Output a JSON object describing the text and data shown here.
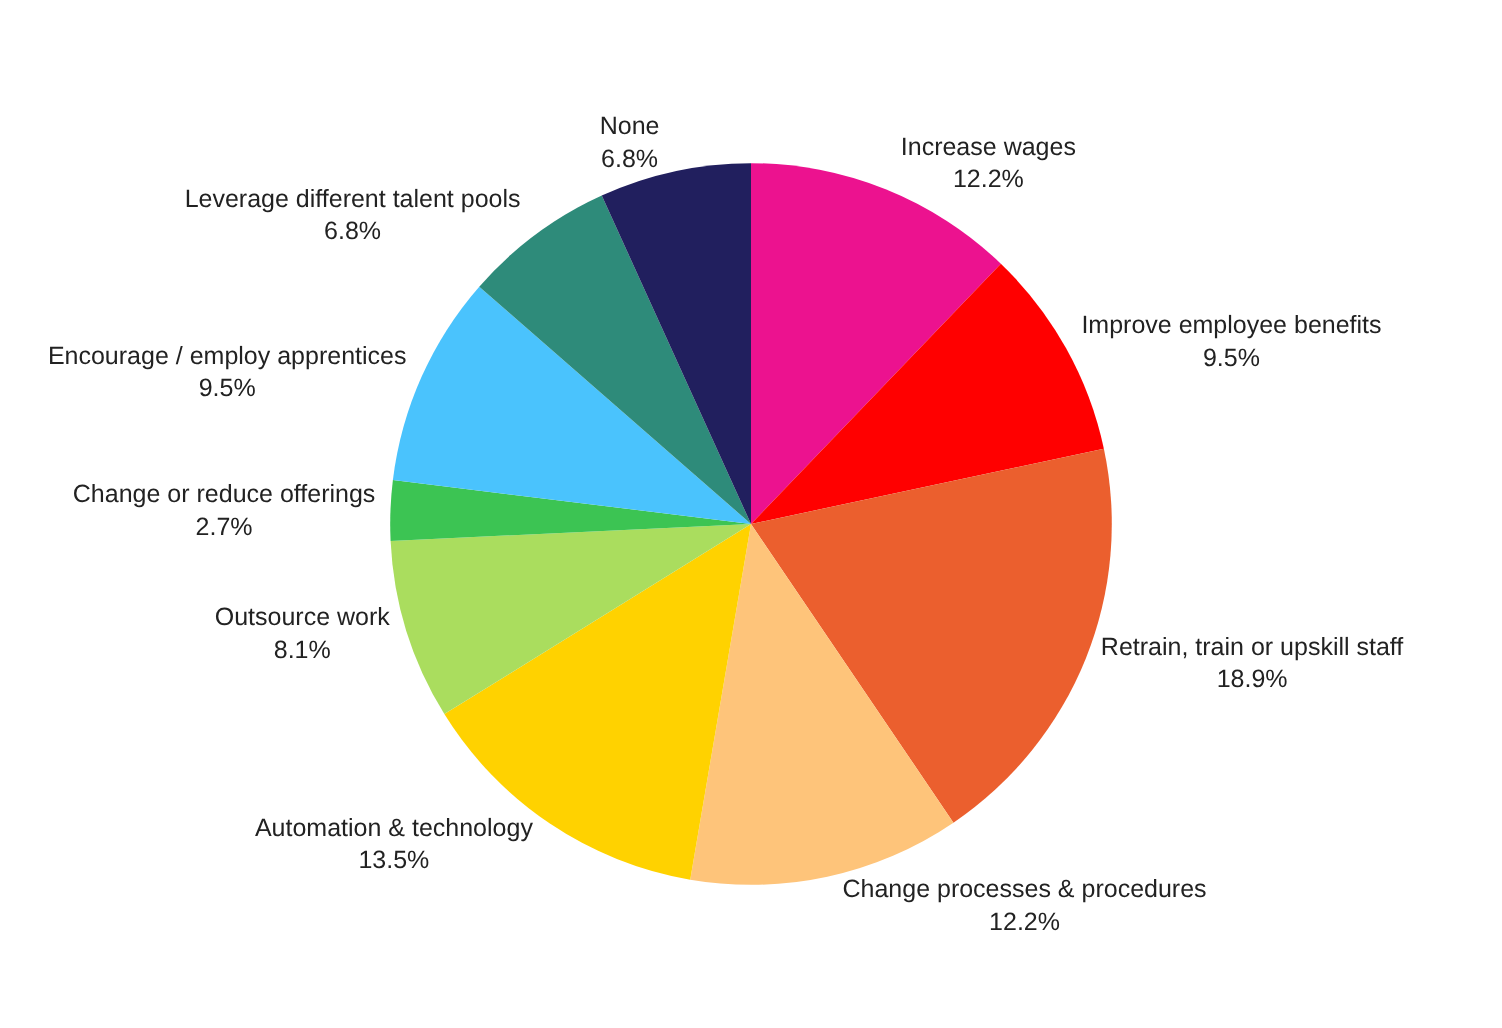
{
  "chart_data": {
    "type": "pie",
    "categories": [
      "Increase wages",
      "Improve employee benefits",
      "Retrain, train or upskill staff",
      "Change processes & procedures",
      "Automation & technology",
      "Outsource work",
      "Change or reduce offerings",
      "Encourage / employ apprentices",
      "Leverage different talent pools",
      "None"
    ],
    "values": [
      12.2,
      9.5,
      18.9,
      12.2,
      13.5,
      8.1,
      2.7,
      9.5,
      6.8,
      6.8
    ],
    "value_labels": [
      "12.2%",
      "9.5%",
      "18.9%",
      "12.2%",
      "13.5%",
      "8.1%",
      "2.7%",
      "9.5%",
      "6.8%",
      "6.8%"
    ],
    "colors": [
      "#ec128f",
      "#ff0000",
      "#eb5f2e",
      "#fec47a",
      "#ffd200",
      "#aadd5e",
      "#3cc453",
      "#4ac3fd",
      "#2e8b7a",
      "#211f5e"
    ],
    "legend": false
  }
}
